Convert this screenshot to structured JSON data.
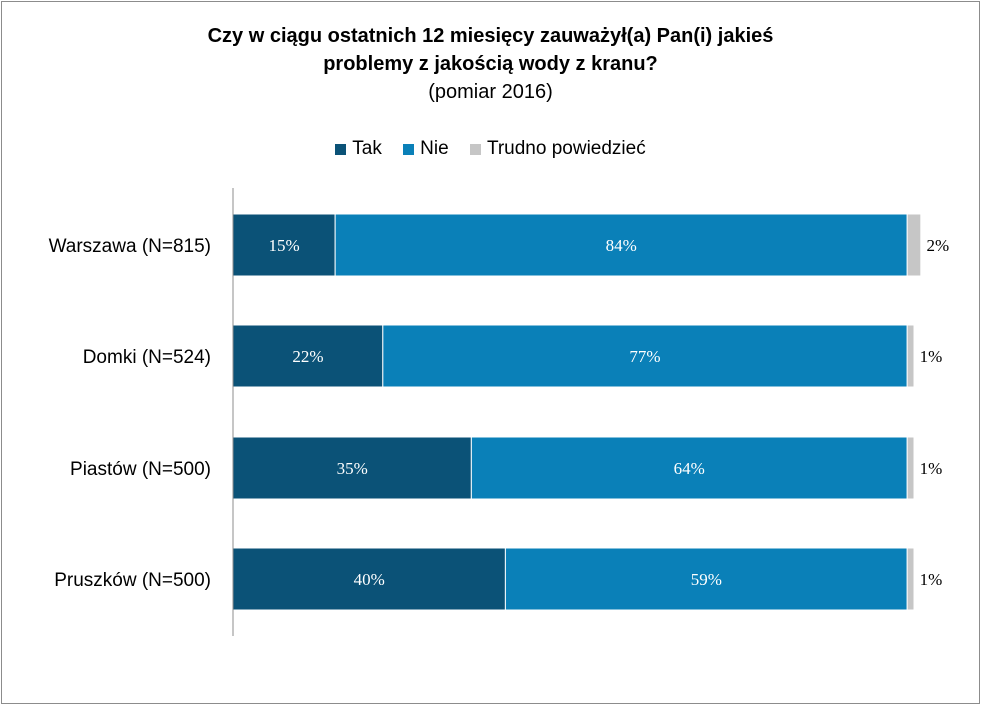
{
  "chart_data": {
    "type": "bar",
    "orientation": "horizontal-stacked-100",
    "title": "Czy w ciągu ostatnich 12 miesięcy zauważył(a) Pan(i) jakieś problemy z jakością wody z kranu?",
    "title_line1": "Czy w ciągu ostatnich 12 miesięcy zauważył(a) Pan(i) jakieś",
    "title_line2": "problemy z jakością wody z kranu?",
    "subtitle": "(pomiar 2016)",
    "legend_position": "top",
    "categories": [
      "Warszawa (N=815)",
      "Domki (N=524)",
      "Piastów (N=500)",
      "Pruszków (N=500)"
    ],
    "series": [
      {
        "name": "Tak",
        "color": "#0b5277",
        "values": [
          15,
          22,
          35,
          40
        ],
        "labels": [
          "15%",
          "22%",
          "35%",
          "40%"
        ]
      },
      {
        "name": "Nie",
        "color": "#0a80b8",
        "values": [
          84,
          77,
          64,
          59
        ],
        "labels": [
          "84%",
          "77%",
          "64%",
          "59%"
        ]
      },
      {
        "name": "Trudno powiedzieć",
        "color": "#c6c6c6",
        "values": [
          2,
          1,
          1,
          1
        ],
        "labels": [
          "2%",
          "1%",
          "1%",
          "1%"
        ]
      }
    ],
    "xlim": [
      0,
      100
    ],
    "grid": false
  }
}
